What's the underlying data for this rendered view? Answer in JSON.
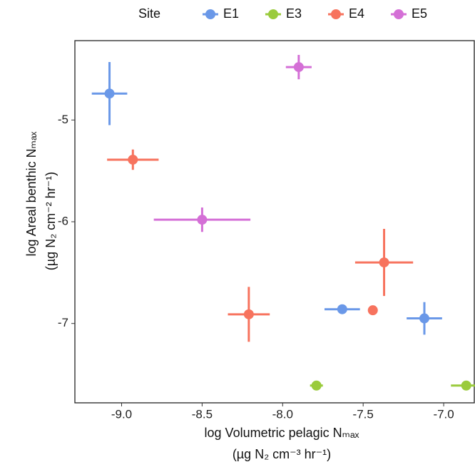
{
  "chart_data": {
    "type": "scatter",
    "legend_title": "Site",
    "xlabel": [
      "log Volumetric pelagic Nₘₐₓ",
      "(µg N₂ cm⁻³ hr⁻¹)"
    ],
    "ylabel": [
      "log Areal benthic Nₘₐₓ",
      "(µg N₂ cm⁻² hr⁻¹)"
    ],
    "xlim": [
      -9.29,
      -6.81
    ],
    "ylim": [
      -7.78,
      -4.22
    ],
    "xticks": [
      {
        "value": -9,
        "label": "-9.0"
      },
      -8.5,
      {
        "value": -8,
        "label": "-8.0"
      },
      -7.5,
      {
        "value": -7,
        "label": "-7.0"
      }
    ],
    "yticks": [
      -5,
      -6,
      -7
    ],
    "legend": "top",
    "series": [
      {
        "name": "E1",
        "color": "#6a98e8",
        "x": [
          -9.075,
          -7.63,
          -7.12
        ],
        "values": [
          -4.74,
          -6.86,
          -6.95
        ],
        "xerr": [
          0.11,
          0.11,
          0.11
        ],
        "yerr": [
          0.31,
          0.02,
          0.16
        ]
      },
      {
        "name": "E3",
        "color": "#9acb3c",
        "x": [
          -7.79,
          -6.86
        ],
        "values": [
          -7.61,
          -7.61
        ],
        "xerr": [
          0.04,
          0.095
        ],
        "yerr": [
          0.02,
          0.02
        ]
      },
      {
        "name": "E4",
        "color": "#f7735e",
        "x": [
          -8.93,
          -8.21,
          -7.44,
          -7.37
        ],
        "values": [
          -5.39,
          -6.91,
          -6.87,
          -6.4
        ],
        "xerr": [
          0.16,
          0.13,
          0.03,
          0.18
        ],
        "yerr": [
          0.1,
          0.27,
          0.03,
          0.33
        ]
      },
      {
        "name": "E5",
        "color": "#d46fd6",
        "x": [
          -7.9,
          -8.5
        ],
        "values": [
          -4.48,
          -5.98
        ],
        "xerr": [
          0.08,
          0.3
        ],
        "yerr": [
          0.12,
          0.12
        ]
      }
    ]
  }
}
